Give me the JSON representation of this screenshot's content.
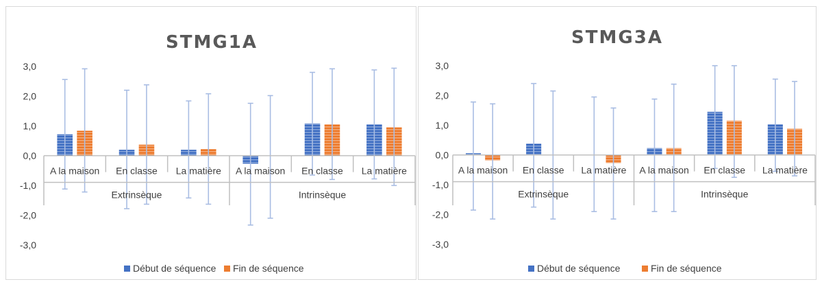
{
  "chart_data": [
    {
      "type": "bar",
      "title": "STMG1A",
      "ylim": [
        -3,
        3
      ],
      "yticks": [
        "3,0",
        "2,0",
        "1,0",
        "0,0",
        "-1,0",
        "-2,0",
        "-3,0"
      ],
      "categories": [
        "A la maison",
        "En classe",
        "La matière",
        "A la maison",
        "En classe",
        "La matière"
      ],
      "groups": [
        {
          "label": "Extrinsèque",
          "span": [
            0,
            2
          ]
        },
        {
          "label": "Intrinsèque",
          "span": [
            3,
            5
          ]
        }
      ],
      "series": [
        {
          "name": "Début de séquence",
          "color": "#4472c4",
          "values": [
            0.72,
            0.2,
            0.2,
            -0.27,
            1.08,
            1.05
          ],
          "error_low": [
            -1.12,
            -1.78,
            -1.42,
            -2.33,
            -0.65,
            -0.78
          ],
          "error_high": [
            2.56,
            2.2,
            1.84,
            1.76,
            2.8,
            2.88
          ]
        },
        {
          "name": "Fin de séquence",
          "color": "#ed7d31",
          "values": [
            0.84,
            0.37,
            0.22,
            0.0,
            1.05,
            0.95
          ],
          "error_low": [
            -1.22,
            -1.63,
            -1.63,
            -2.1,
            -0.8,
            -1.0
          ],
          "error_high": [
            2.92,
            2.38,
            2.08,
            2.02,
            2.92,
            2.94
          ]
        }
      ],
      "legend_position": "bottom",
      "grid": false
    },
    {
      "type": "bar",
      "title": "STMG3A",
      "ylim": [
        -3,
        3
      ],
      "yticks": [
        "3,0",
        "2,0",
        "1,0",
        "0,0",
        "-1,0",
        "-2,0",
        "-3,0"
      ],
      "categories": [
        "A la maison",
        "En classe",
        "La matière",
        "A la maison",
        "En classe",
        "La matière"
      ],
      "groups": [
        {
          "label": "Extrinsèque",
          "span": [
            0,
            2
          ]
        },
        {
          "label": "Intrinsèque",
          "span": [
            3,
            5
          ]
        }
      ],
      "series": [
        {
          "name": "Début de séquence",
          "color": "#4472c4",
          "values": [
            0.06,
            0.38,
            0.0,
            0.23,
            1.45,
            1.03
          ],
          "error_low": [
            -1.85,
            -1.75,
            -1.9,
            -1.9,
            -0.45,
            -0.55
          ],
          "error_high": [
            1.78,
            2.4,
            1.95,
            1.88,
            3.0,
            2.55
          ]
        },
        {
          "name": "Fin de séquence",
          "color": "#ed7d31",
          "values": [
            -0.18,
            0.0,
            -0.27,
            0.23,
            1.15,
            0.88
          ],
          "error_low": [
            -2.15,
            -2.15,
            -2.15,
            -1.9,
            -0.75,
            -0.7
          ],
          "error_high": [
            1.72,
            2.15,
            1.58,
            2.38,
            3.0,
            2.47
          ]
        }
      ],
      "legend_position": "bottom",
      "grid": false
    }
  ]
}
